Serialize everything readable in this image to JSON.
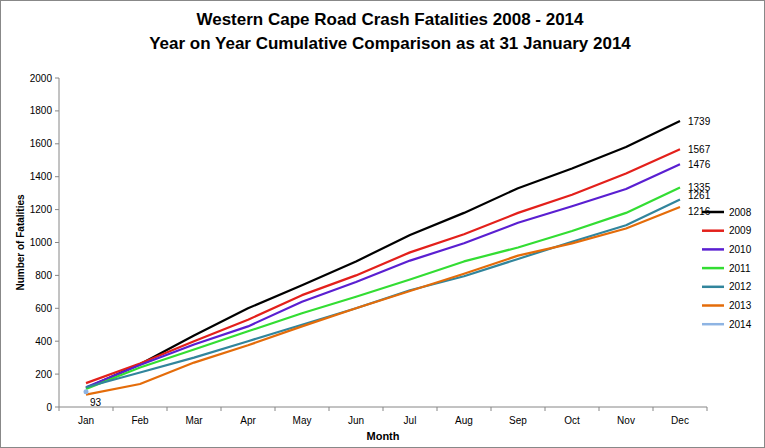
{
  "chart_data": {
    "type": "line",
    "title": "Western Cape Road Crash Fatalities 2008 - 2014",
    "subtitle": "Year on Year Cumulative Comparison as at 31 January 2014",
    "x_label": "Month",
    "y_label": "Number of Fatalities",
    "categories": [
      "Jan",
      "Feb",
      "Mar",
      "Apr",
      "May",
      "Jun",
      "Jul",
      "Aug",
      "Sep",
      "Oct",
      "Nov",
      "Dec"
    ],
    "ylim": [
      0,
      2000
    ],
    "yticks": [
      0,
      200,
      400,
      600,
      800,
      1000,
      1200,
      1400,
      1600,
      1800,
      2000
    ],
    "grid": false,
    "legend": "right",
    "series": [
      {
        "name": "2008",
        "color": "#000000",
        "values": [
          115,
          260,
          435,
          600,
          740,
          885,
          1045,
          1180,
          1330,
          1450,
          1580,
          1739
        ],
        "value_labels": [
          null,
          null,
          null,
          null,
          null,
          null,
          null,
          null,
          null,
          null,
          null,
          "1739"
        ]
      },
      {
        "name": "2009",
        "color": "#e3201b",
        "values": [
          145,
          265,
          400,
          530,
          680,
          800,
          940,
          1050,
          1180,
          1290,
          1420,
          1567
        ],
        "value_labels": [
          null,
          null,
          null,
          null,
          null,
          null,
          null,
          null,
          null,
          null,
          null,
          "1567"
        ]
      },
      {
        "name": "2010",
        "color": "#5a1fd1",
        "values": [
          120,
          255,
          380,
          490,
          640,
          760,
          890,
          995,
          1120,
          1220,
          1325,
          1476
        ],
        "value_labels": [
          null,
          null,
          null,
          null,
          null,
          null,
          null,
          null,
          null,
          null,
          null,
          "1476"
        ]
      },
      {
        "name": "2011",
        "color": "#33dd33",
        "values": [
          110,
          240,
          350,
          460,
          570,
          670,
          775,
          885,
          970,
          1070,
          1180,
          1335
        ],
        "value_labels": [
          null,
          null,
          null,
          null,
          null,
          null,
          null,
          null,
          null,
          null,
          null,
          "1335"
        ]
      },
      {
        "name": "2012",
        "color": "#31859c",
        "values": [
          120,
          210,
          300,
          400,
          500,
          600,
          710,
          795,
          900,
          1005,
          1105,
          1261
        ],
        "value_labels": [
          null,
          null,
          null,
          null,
          null,
          null,
          null,
          null,
          null,
          null,
          null,
          "1261"
        ]
      },
      {
        "name": "2013",
        "color": "#e46c0a",
        "values": [
          75,
          140,
          270,
          375,
          490,
          600,
          705,
          810,
          920,
          995,
          1085,
          1216
        ],
        "value_labels": [
          null,
          null,
          null,
          null,
          null,
          null,
          null,
          null,
          null,
          null,
          null,
          "1216"
        ]
      },
      {
        "name": "2014",
        "color": "#8eb4e3",
        "values": [
          93,
          null,
          null,
          null,
          null,
          null,
          null,
          null,
          null,
          null,
          null,
          null
        ],
        "value_labels": [
          "93",
          null,
          null,
          null,
          null,
          null,
          null,
          null,
          null,
          null,
          null,
          null
        ]
      }
    ]
  }
}
